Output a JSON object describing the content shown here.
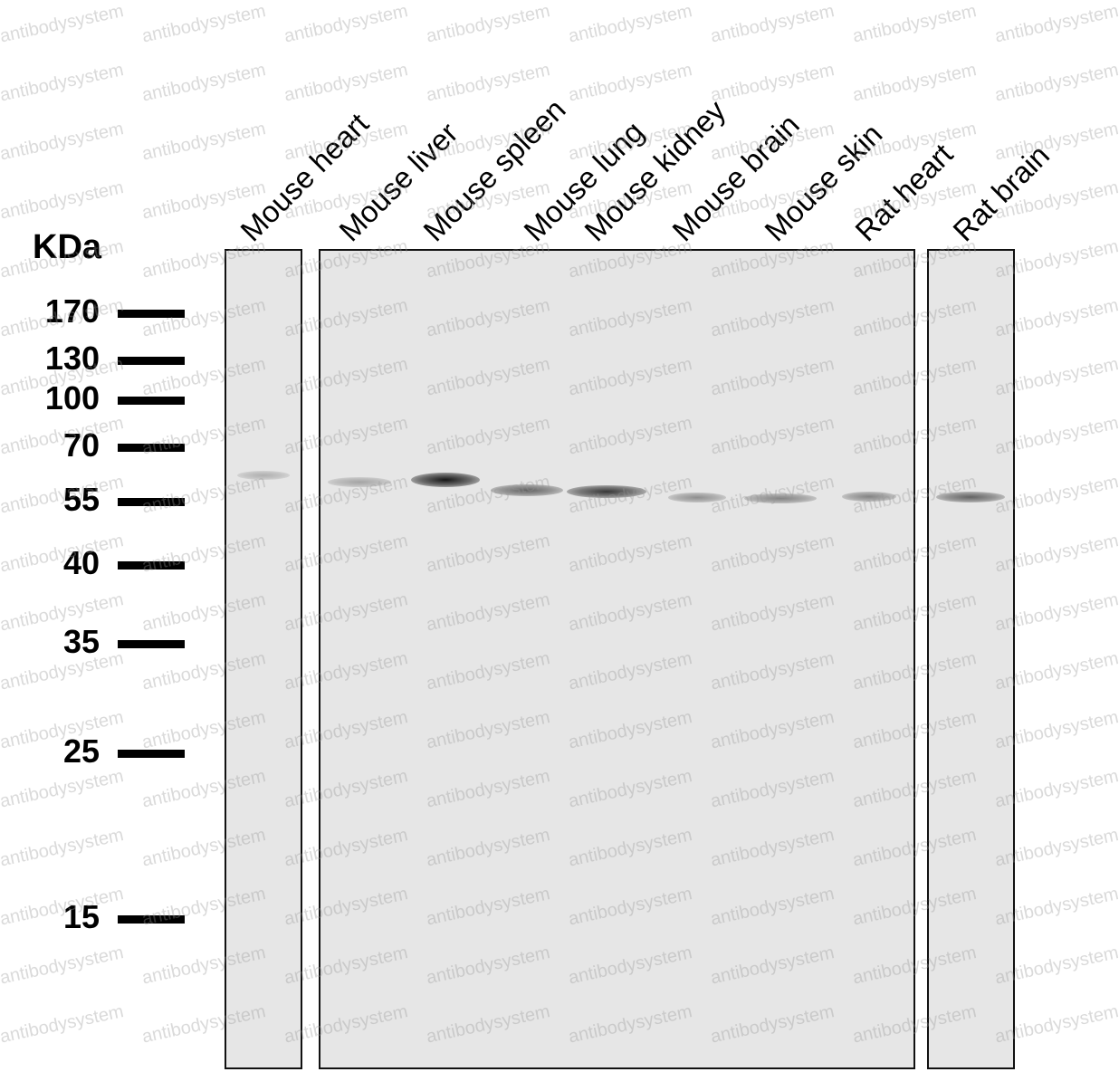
{
  "watermark_text": "antibodysystem",
  "unit_label": "KDa",
  "markers": [
    {
      "label": "170",
      "kda": 170
    },
    {
      "label": "130",
      "kda": 130
    },
    {
      "label": "100",
      "kda": 100
    },
    {
      "label": "70",
      "kda": 70
    },
    {
      "label": "55",
      "kda": 55
    },
    {
      "label": "40",
      "kda": 40
    },
    {
      "label": "35",
      "kda": 35
    },
    {
      "label": "25",
      "kda": 25
    },
    {
      "label": "15",
      "kda": 15
    }
  ],
  "lanes": [
    {
      "label": "Mouse heart",
      "band_intensity": 0.25
    },
    {
      "label": "Mouse liver",
      "band_intensity": 0.3
    },
    {
      "label": "Mouse spleen",
      "band_intensity": 0.95
    },
    {
      "label": "Mouse lung",
      "band_intensity": 0.6
    },
    {
      "label": "Mouse kidney",
      "band_intensity": 0.8
    },
    {
      "label": "Mouse brain",
      "band_intensity": 0.4
    },
    {
      "label": "Mouse skin",
      "band_intensity": 0.45
    },
    {
      "label": "Rat heart",
      "band_intensity": 0.45
    },
    {
      "label": "Rat brain",
      "band_intensity": 0.6
    }
  ],
  "colors": {
    "membrane": "#e6e6e6",
    "band": "#0a0a0a",
    "border": "#111111"
  }
}
